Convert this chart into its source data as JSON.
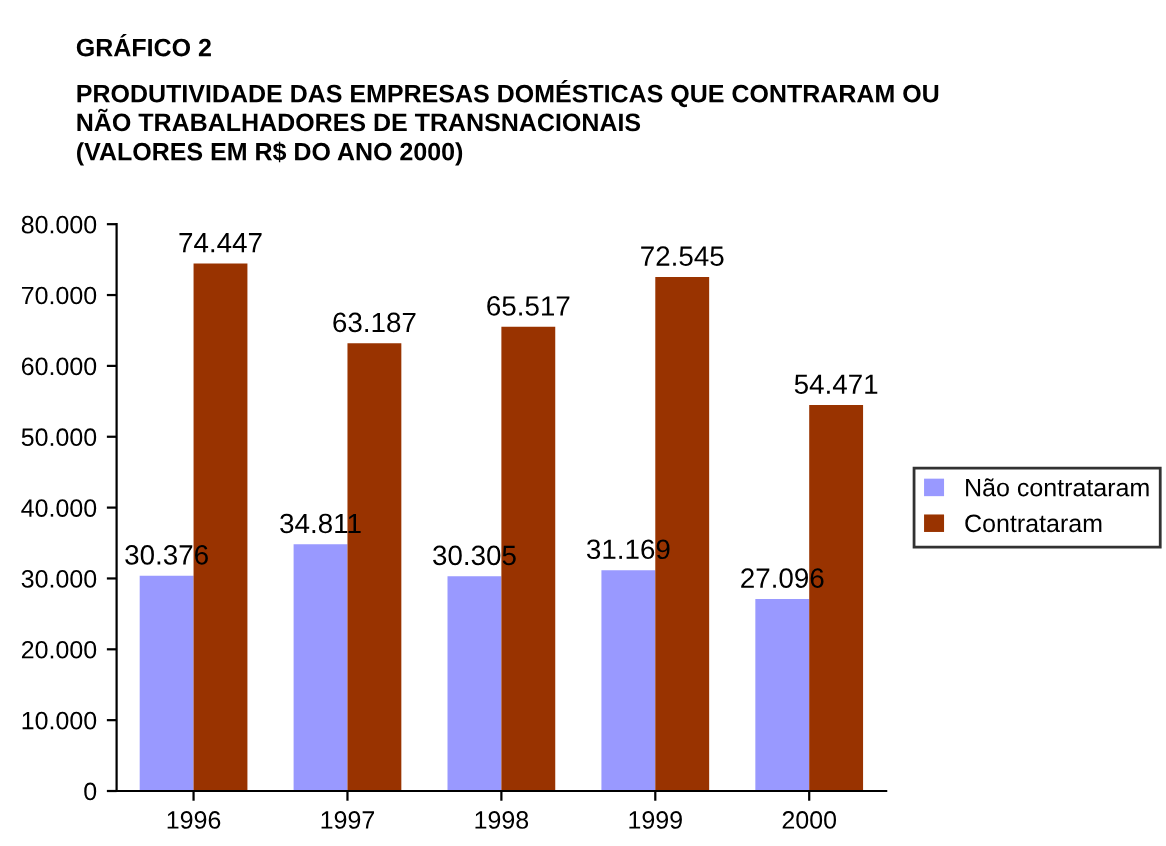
{
  "chart_data": {
    "type": "bar",
    "title": "GRÁFICO 2",
    "subtitle": "PRODUTIVIDADE DAS EMPRESAS DOMÉSTICAS QUE CONTRARAM OU\nNÃO TRABALHADORES DE TRANSNACIONAIS\n(VALORES EM R$ DO ANO 2000)",
    "categories": [
      "1996",
      "1997",
      "1998",
      "1999",
      "2000"
    ],
    "series": [
      {
        "name": "Não contrataram",
        "color": "#9999ff",
        "values": [
          30376,
          34811,
          30305,
          31169,
          27096
        ],
        "value_labels": [
          "30.376",
          "34.811",
          "30.305",
          "31.169",
          "27.096"
        ]
      },
      {
        "name": "Contrataram",
        "color": "#993300",
        "values": [
          74447,
          63187,
          65517,
          72545,
          54471
        ],
        "value_labels": [
          "74.447",
          "63.187",
          "65.517",
          "72.545",
          "54.471"
        ]
      }
    ],
    "ylim": [
      0,
      80000
    ],
    "yticks": [
      0,
      {
        "value": 10000,
        "label": "10.000"
      },
      {
        "value": 20000,
        "label": "20.000"
      },
      {
        "value": 30000,
        "label": "30.000"
      },
      {
        "value": 40000,
        "label": "40.000"
      },
      {
        "value": 50000,
        "label": "50.000"
      },
      {
        "value": 60000,
        "label": "60.000"
      },
      {
        "value": 70000,
        "label": "70.000"
      },
      {
        "value": 80000,
        "label": "80.000"
      }
    ],
    "grid": false,
    "legend": "right"
  }
}
